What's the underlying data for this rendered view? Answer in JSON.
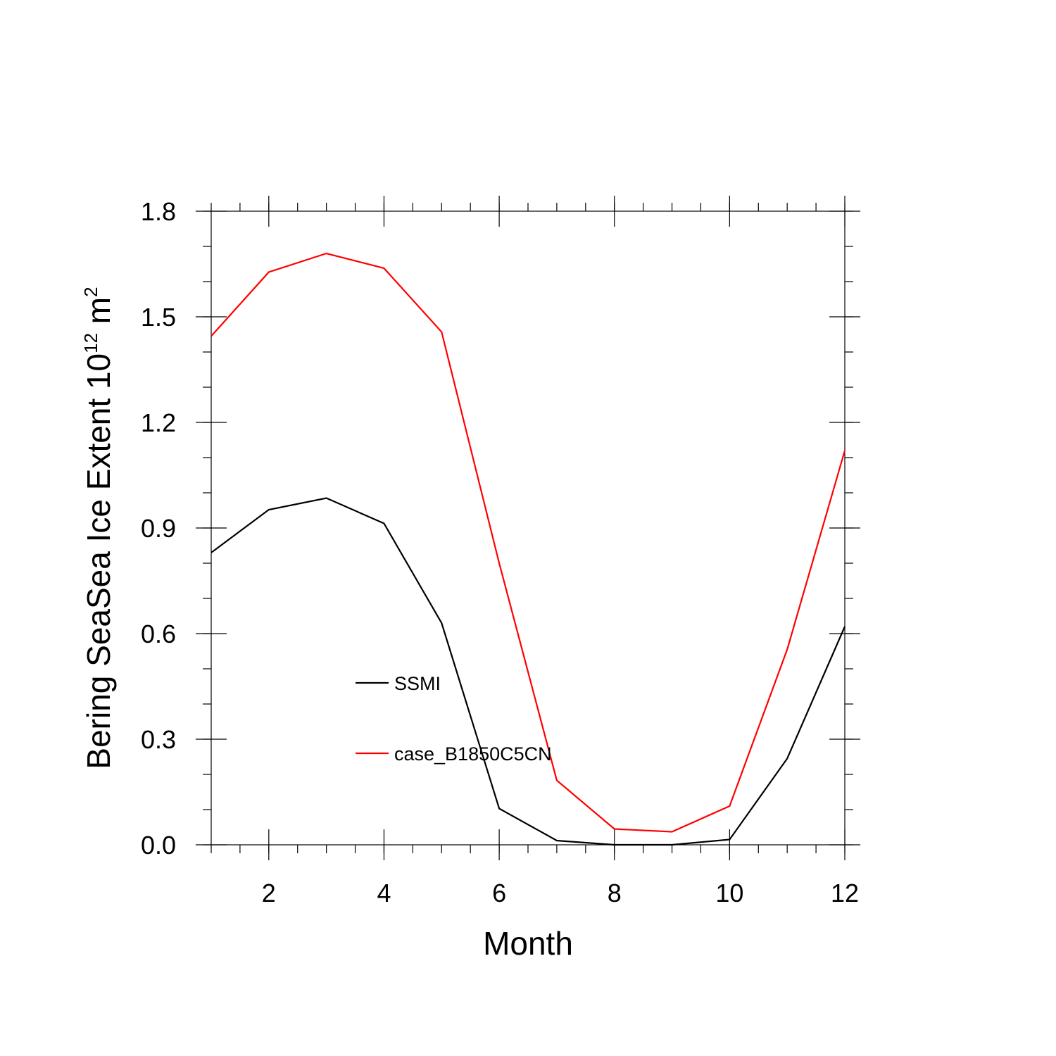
{
  "chart_data": {
    "type": "line",
    "x": [
      1,
      2,
      3,
      4,
      5,
      6,
      7,
      8,
      9,
      10,
      11,
      12
    ],
    "series": [
      {
        "name": "SSMI",
        "color": "#000000",
        "values": [
          0.83,
          0.952,
          0.985,
          0.913,
          0.63,
          0.103,
          0.012,
          0.0,
          0.0,
          0.015,
          0.245,
          0.62
        ]
      },
      {
        "name": "case_B1850C5CN",
        "color": "#ff0000",
        "values": [
          1.445,
          1.627,
          1.68,
          1.638,
          1.457,
          0.8,
          0.183,
          0.045,
          0.037,
          0.11,
          0.555,
          1.12
        ]
      }
    ],
    "xlim": [
      1,
      12
    ],
    "ylim": [
      0.0,
      1.8
    ],
    "xticks": [
      2,
      4,
      6,
      8,
      10,
      12
    ],
    "xtick_labels": [
      "2",
      "4",
      "6",
      "8",
      "10",
      "12"
    ],
    "yticks": [
      0.0,
      0.3,
      0.6,
      0.9,
      1.2,
      1.5,
      1.8
    ],
    "ytick_labels": [
      "0.0",
      "0.3",
      "0.6",
      "0.9",
      "1.2",
      "1.5",
      "1.8"
    ],
    "xlabel": "Month",
    "ylabel": "Bering SeaSea Ice Extent 10",
    "ylabel_sup": "12",
    "ylabel_unit": " m",
    "ylabel_unit_sup": "2",
    "grid": false,
    "legend_position": "inside-lower-left"
  }
}
